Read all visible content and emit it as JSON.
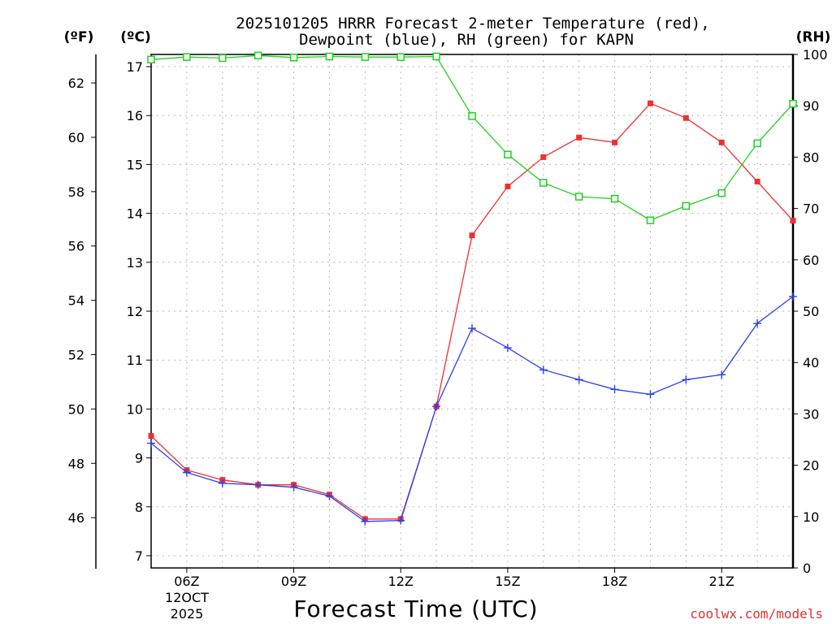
{
  "colors": {
    "temperature": "#f03030",
    "dewpoint": "#2a3ff0",
    "rh": "#20d020",
    "credit": "#e03030"
  },
  "chart_data": {
    "type": "line",
    "title_line1": "2025101205 HRRR Forecast 2-meter Temperature (red),",
    "title_line2": "Dewpoint (blue), RH (green) for KAPN",
    "xlabel": "Forecast Time (UTC)",
    "credit": "coolwx.com/models",
    "unit_f": "(ºF)",
    "unit_c": "(ºC)",
    "unit_rh": "(RH)",
    "date_line1": "12OCT",
    "date_line2": "2025",
    "hours": [
      5,
      6,
      7,
      8,
      9,
      10,
      11,
      12,
      13,
      14,
      15,
      16,
      17,
      18,
      19,
      20,
      21,
      22,
      23
    ],
    "x_range": [
      5,
      23
    ],
    "x_ticks": [
      {
        "hour": 6,
        "label": "06Z"
      },
      {
        "hour": 9,
        "label": "09Z"
      },
      {
        "hour": 12,
        "label": "12Z"
      },
      {
        "hour": 15,
        "label": "15Z"
      },
      {
        "hour": 18,
        "label": "18Z"
      },
      {
        "hour": 21,
        "label": "21Z"
      }
    ],
    "c_range": [
      6.75,
      17.25
    ],
    "c_ticks": [
      7,
      8,
      9,
      10,
      11,
      12,
      13,
      14,
      15,
      16,
      17
    ],
    "f_ticks": [
      46,
      48,
      50,
      52,
      54,
      56,
      58,
      60,
      62
    ],
    "rh_range": [
      0,
      100
    ],
    "rh_ticks": [
      0,
      10,
      20,
      30,
      40,
      50,
      60,
      70,
      80,
      90,
      100
    ],
    "series": [
      {
        "name": "Temperature",
        "color_key": "temperature",
        "axis": "c",
        "marker": "filled-square",
        "values": [
          9.45,
          8.75,
          8.55,
          8.45,
          8.45,
          8.25,
          7.75,
          7.75,
          10.05,
          13.55,
          14.55,
          15.15,
          15.55,
          15.45,
          16.25,
          15.95,
          15.45,
          14.65,
          13.85
        ]
      },
      {
        "name": "Dewpoint",
        "color_key": "dewpoint",
        "axis": "c",
        "marker": "plus",
        "values": [
          9.3,
          8.7,
          8.48,
          8.45,
          8.4,
          8.22,
          7.7,
          7.72,
          10.05,
          11.65,
          11.25,
          10.8,
          10.6,
          10.4,
          10.3,
          10.6,
          10.7,
          11.75,
          12.3
        ]
      },
      {
        "name": "RH",
        "color_key": "rh",
        "axis": "rh",
        "marker": "open-square",
        "values": [
          99,
          99.5,
          99.3,
          99.8,
          99.4,
          99.6,
          99.5,
          99.5,
          99.6,
          88,
          80.5,
          75,
          72.3,
          71.9,
          67.7,
          70.5,
          73,
          82.7,
          90.4
        ]
      }
    ]
  }
}
